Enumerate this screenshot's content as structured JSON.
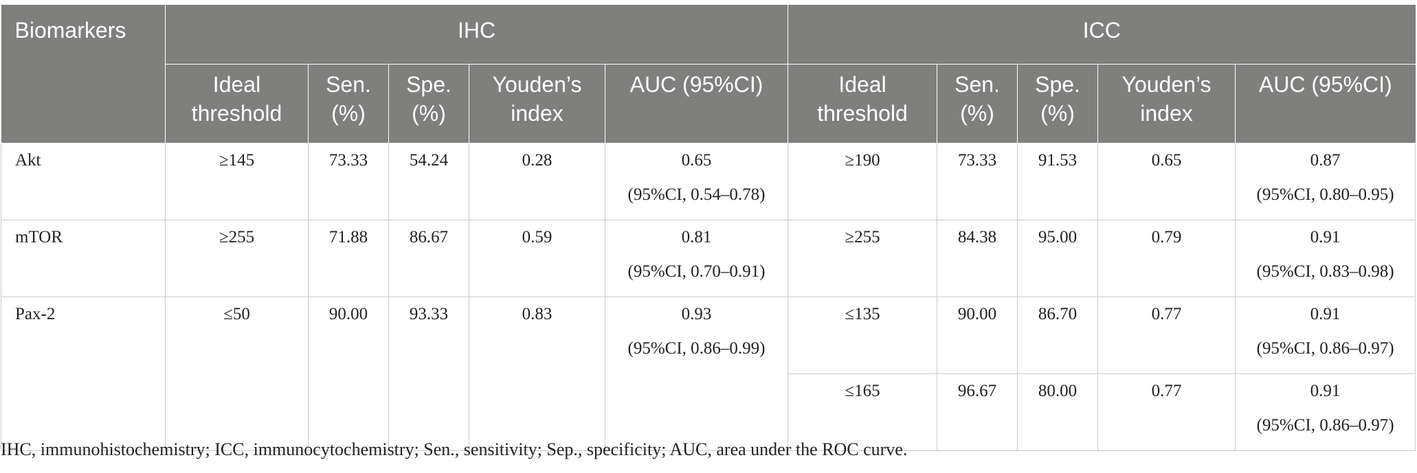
{
  "header": {
    "biomarkers": "Biomarkers",
    "ihc": "IHC",
    "icc": "ICC",
    "ideal_threshold": [
      "Ideal",
      "threshold"
    ],
    "sen": [
      "Sen.",
      "(%)"
    ],
    "spe": [
      "Spe.",
      "(%)"
    ],
    "youden": [
      "Youden’s",
      "index"
    ],
    "auc": "AUC (95%CI)"
  },
  "rows": {
    "akt": {
      "name": "Akt",
      "ihc": {
        "threshold": "≥145",
        "sen": "73.33",
        "spe": "54.24",
        "youden": "0.28",
        "auc": "0.65",
        "ci": "(95%CI, 0.54–0.78)"
      },
      "icc": {
        "threshold": "≥190",
        "sen": "73.33",
        "spe": "91.53",
        "youden": "0.65",
        "auc": "0.87",
        "ci": "(95%CI, 0.80–0.95)"
      }
    },
    "mtor": {
      "name": "mTOR",
      "ihc": {
        "threshold": "≥255",
        "sen": "71.88",
        "spe": "86.67",
        "youden": "0.59",
        "auc": "0.81",
        "ci": "(95%CI, 0.70–0.91)"
      },
      "icc": {
        "threshold": "≥255",
        "sen": "84.38",
        "spe": "95.00",
        "youden": "0.79",
        "auc": "0.91",
        "ci": "(95%CI, 0.83–0.98)"
      }
    },
    "pax2": {
      "name": "Pax-2",
      "ihc": {
        "threshold": "≤50",
        "sen": "90.00",
        "spe": "93.33",
        "youden": "0.83",
        "auc": "0.93",
        "ci": "(95%CI, 0.86–0.99)"
      },
      "icc": [
        {
          "threshold": "≤135",
          "sen": "90.00",
          "spe": "86.70",
          "youden": "0.77",
          "auc": "0.91",
          "ci": "(95%CI, 0.86–0.97)"
        },
        {
          "threshold": "≤165",
          "sen": "96.67",
          "spe": "80.00",
          "youden": "0.77",
          "auc": "0.91",
          "ci": "(95%CI, 0.86–0.97)"
        }
      ]
    }
  },
  "footnote": "IHC, immunohistochemistry; ICC, immunocytochemistry; Sen., sensitivity; Sep., specificity; AUC, area under the ROC curve."
}
